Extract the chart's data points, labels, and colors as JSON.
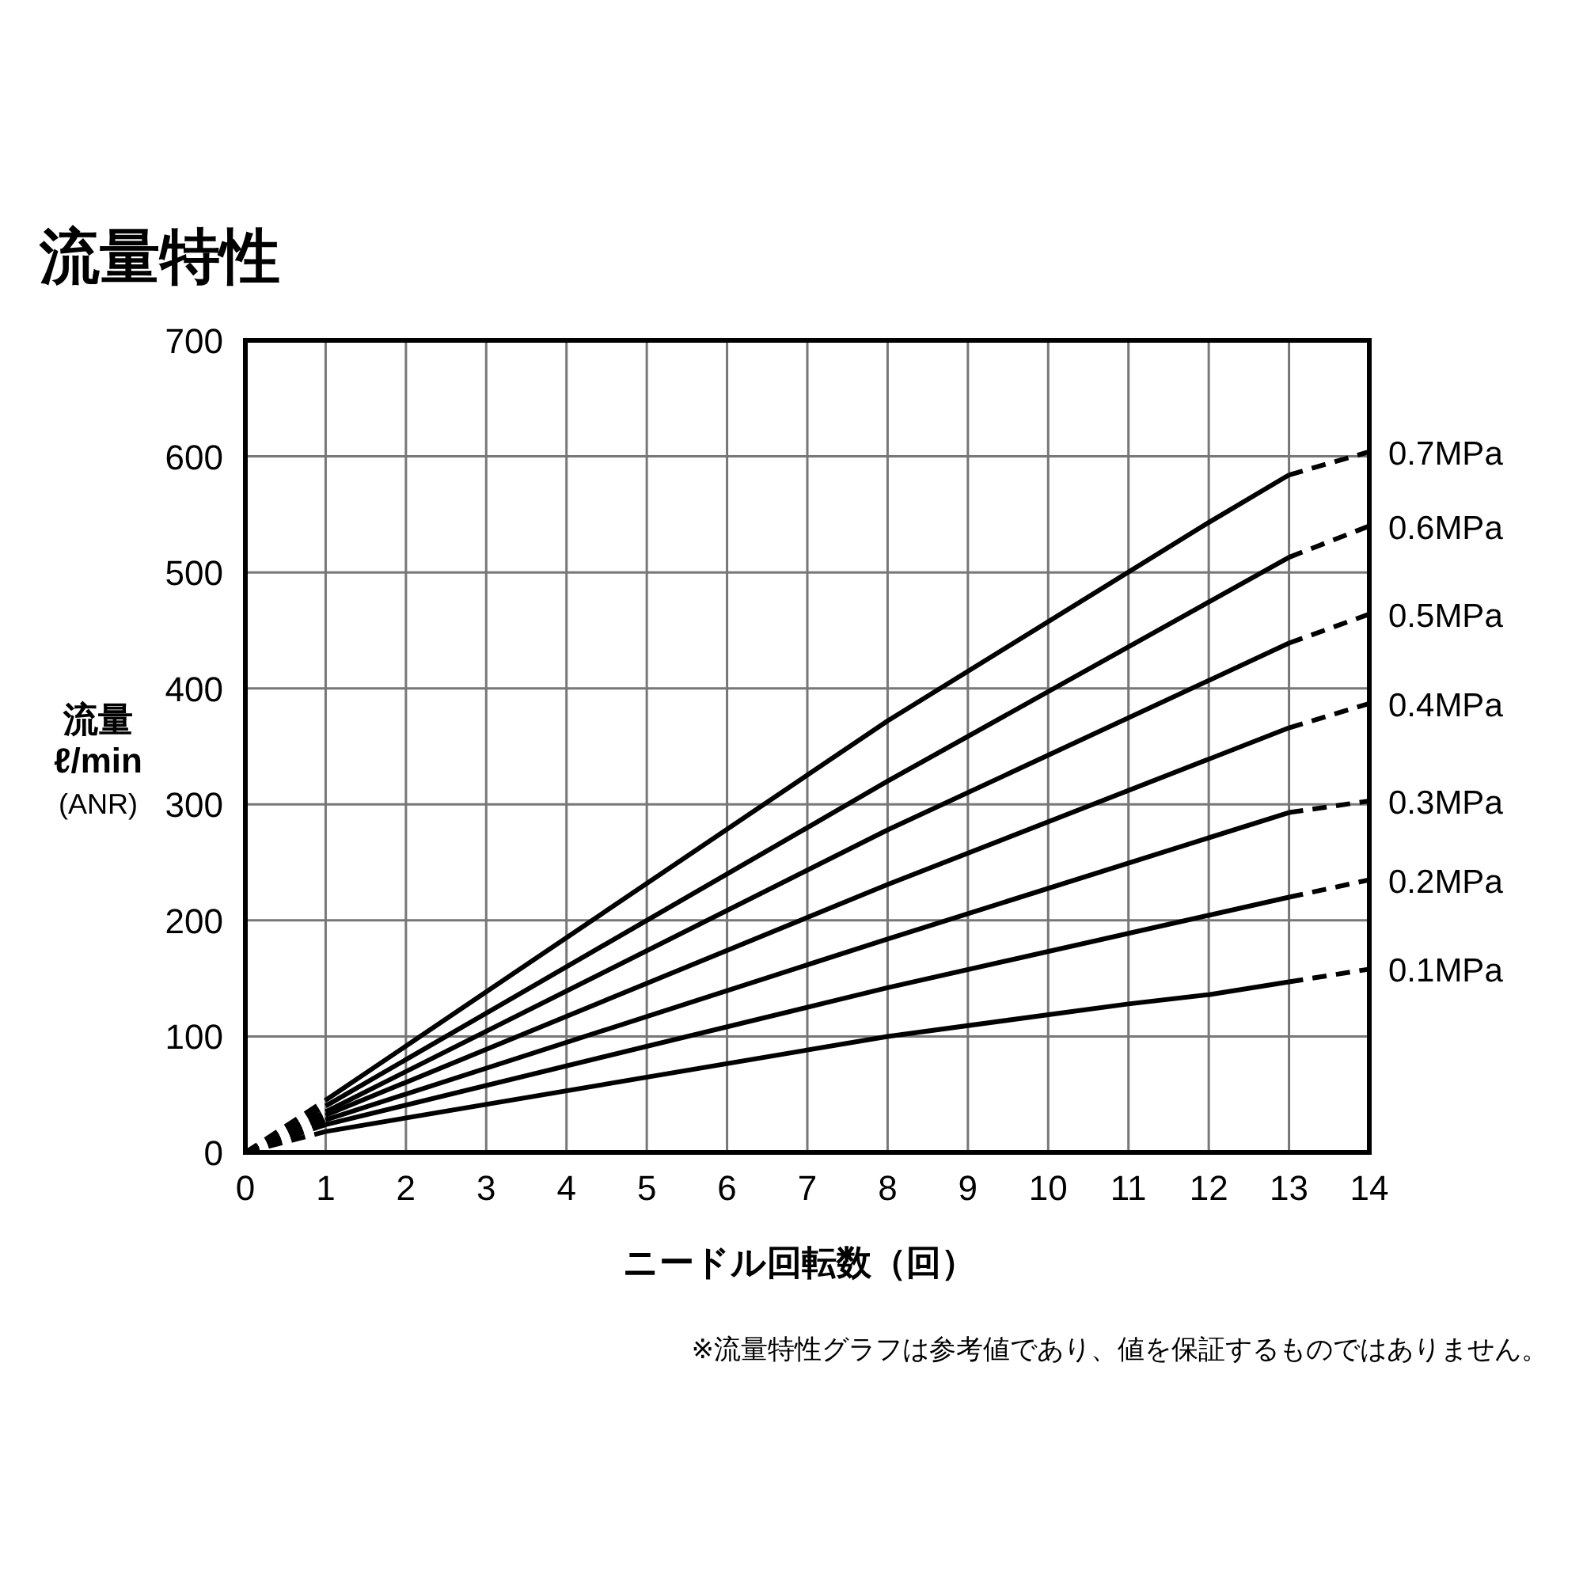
{
  "chart_data": {
    "type": "line",
    "title": "流量特性",
    "xlabel": "ニードル回転数（回）",
    "ylabel": "流量\nℓ/min\n(ANR)",
    "annotations": [
      "※流量特性グラフは参考値であり、値を保証するものではありません。"
    ],
    "xlim": [
      0,
      14
    ],
    "ylim": [
      0,
      700
    ],
    "xticks": [
      0,
      1,
      2,
      3,
      4,
      5,
      6,
      7,
      8,
      9,
      10,
      11,
      12,
      13,
      14
    ],
    "yticks": [
      0,
      100,
      200,
      300,
      400,
      500,
      600,
      700
    ],
    "grid": true,
    "series": [
      {
        "color": "#000000",
        "line_style": "dashed",
        "x": [
          0,
          1
        ],
        "values": [
          0,
          45
        ]
      },
      {
        "color": "#000000",
        "line_style": "solid",
        "x": [
          1,
          8,
          12,
          13
        ],
        "values": [
          45,
          372,
          543,
          584
        ]
      },
      {
        "name": "0.7MPa",
        "color": "#000000",
        "line_style": "dashed",
        "x": [
          13,
          14
        ],
        "values": [
          584,
          604
        ]
      },
      {
        "color": "#000000",
        "line_style": "dashed",
        "x": [
          0,
          1
        ],
        "values": [
          0,
          40
        ]
      },
      {
        "color": "#000000",
        "line_style": "solid",
        "x": [
          1,
          8,
          13
        ],
        "values": [
          40,
          320,
          513
        ]
      },
      {
        "name": "0.6MPa",
        "color": "#000000",
        "line_style": "dashed",
        "x": [
          13,
          14
        ],
        "values": [
          513,
          540
        ]
      },
      {
        "color": "#000000",
        "line_style": "dashed",
        "x": [
          0,
          1
        ],
        "values": [
          0,
          35
        ]
      },
      {
        "color": "#000000",
        "line_style": "solid",
        "x": [
          1,
          8,
          13
        ],
        "values": [
          35,
          278,
          439
        ]
      },
      {
        "name": "0.5MPa",
        "color": "#000000",
        "line_style": "dashed",
        "x": [
          13,
          14
        ],
        "values": [
          439,
          464
        ]
      },
      {
        "color": "#000000",
        "line_style": "dashed",
        "x": [
          0,
          1
        ],
        "values": [
          0,
          32
        ]
      },
      {
        "color": "#000000",
        "line_style": "solid",
        "x": [
          1,
          8,
          13
        ],
        "values": [
          32,
          231,
          366
        ]
      },
      {
        "name": "0.4MPa",
        "color": "#000000",
        "line_style": "dashed",
        "x": [
          13,
          14
        ],
        "values": [
          366,
          387
        ]
      },
      {
        "color": "#000000",
        "line_style": "dashed",
        "x": [
          0,
          1
        ],
        "values": [
          0,
          28
        ]
      },
      {
        "color": "#000000",
        "line_style": "solid",
        "x": [
          1,
          8,
          13
        ],
        "values": [
          28,
          184,
          293
        ]
      },
      {
        "name": "0.3MPa",
        "color": "#000000",
        "line_style": "dashed",
        "x": [
          13,
          14
        ],
        "values": [
          293,
          303
        ]
      },
      {
        "color": "#000000",
        "line_style": "dashed",
        "x": [
          0,
          1
        ],
        "values": [
          0,
          24
        ]
      },
      {
        "color": "#000000",
        "line_style": "solid",
        "x": [
          1,
          8,
          13
        ],
        "values": [
          24,
          142,
          220
        ]
      },
      {
        "name": "0.2MPa",
        "color": "#000000",
        "line_style": "dashed",
        "x": [
          13,
          14
        ],
        "values": [
          220,
          235
        ]
      },
      {
        "color": "#000000",
        "line_style": "dashed",
        "x": [
          0,
          1
        ],
        "values": [
          0,
          18
        ]
      },
      {
        "color": "#000000",
        "line_style": "solid",
        "x": [
          1,
          8,
          11,
          12,
          13
        ],
        "values": [
          18,
          100,
          128,
          136,
          147
        ]
      },
      {
        "name": "0.1MPa",
        "color": "#000000",
        "line_style": "dashed",
        "x": [
          13,
          14
        ],
        "values": [
          147,
          158
        ]
      }
    ]
  }
}
